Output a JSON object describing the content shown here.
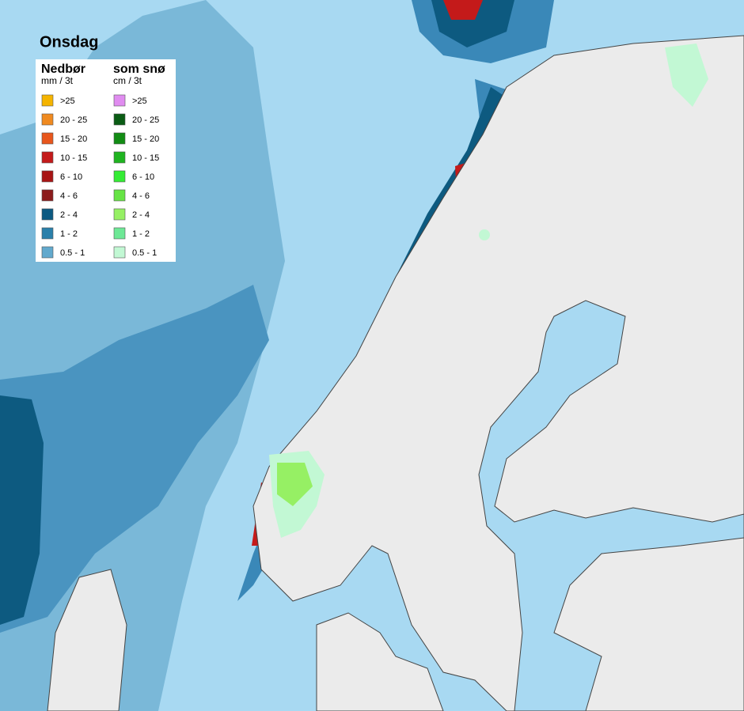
{
  "title": "Onsdag",
  "legend": {
    "rain": {
      "heading": "Nedbør",
      "unit": "mm / 3t",
      "items": [
        {
          "label": ">25",
          "color": "#f5b400"
        },
        {
          "label": "20 - 25",
          "color": "#f08a20"
        },
        {
          "label": "15 - 20",
          "color": "#e8561c"
        },
        {
          "label": "10 - 15",
          "color": "#c41a1a"
        },
        {
          "label": "6 - 10",
          "color": "#a81414"
        },
        {
          "label": "4 - 6",
          "color": "#8c1c1c"
        },
        {
          "label": "2 - 4",
          "color": "#0c5a82"
        },
        {
          "label": "1 - 2",
          "color": "#2b80aa"
        },
        {
          "label": "0.5 - 1",
          "color": "#62a9cd"
        }
      ]
    },
    "snow": {
      "heading": "som snø",
      "unit": "cm / 3t",
      "items": [
        {
          "label": ">25",
          "color": "#e08cf0"
        },
        {
          "label": "20 - 25",
          "color": "#0a5c14"
        },
        {
          "label": "15 - 20",
          "color": "#128c14"
        },
        {
          "label": "10 - 15",
          "color": "#1fb420"
        },
        {
          "label": "6 - 10",
          "color": "#34ec34"
        },
        {
          "label": "4 - 6",
          "color": "#66e444"
        },
        {
          "label": "2 - 4",
          "color": "#96f064"
        },
        {
          "label": "1 - 2",
          "color": "#6ee896"
        },
        {
          "label": "0.5 - 1",
          "color": "#c2f8d4"
        }
      ]
    }
  }
}
